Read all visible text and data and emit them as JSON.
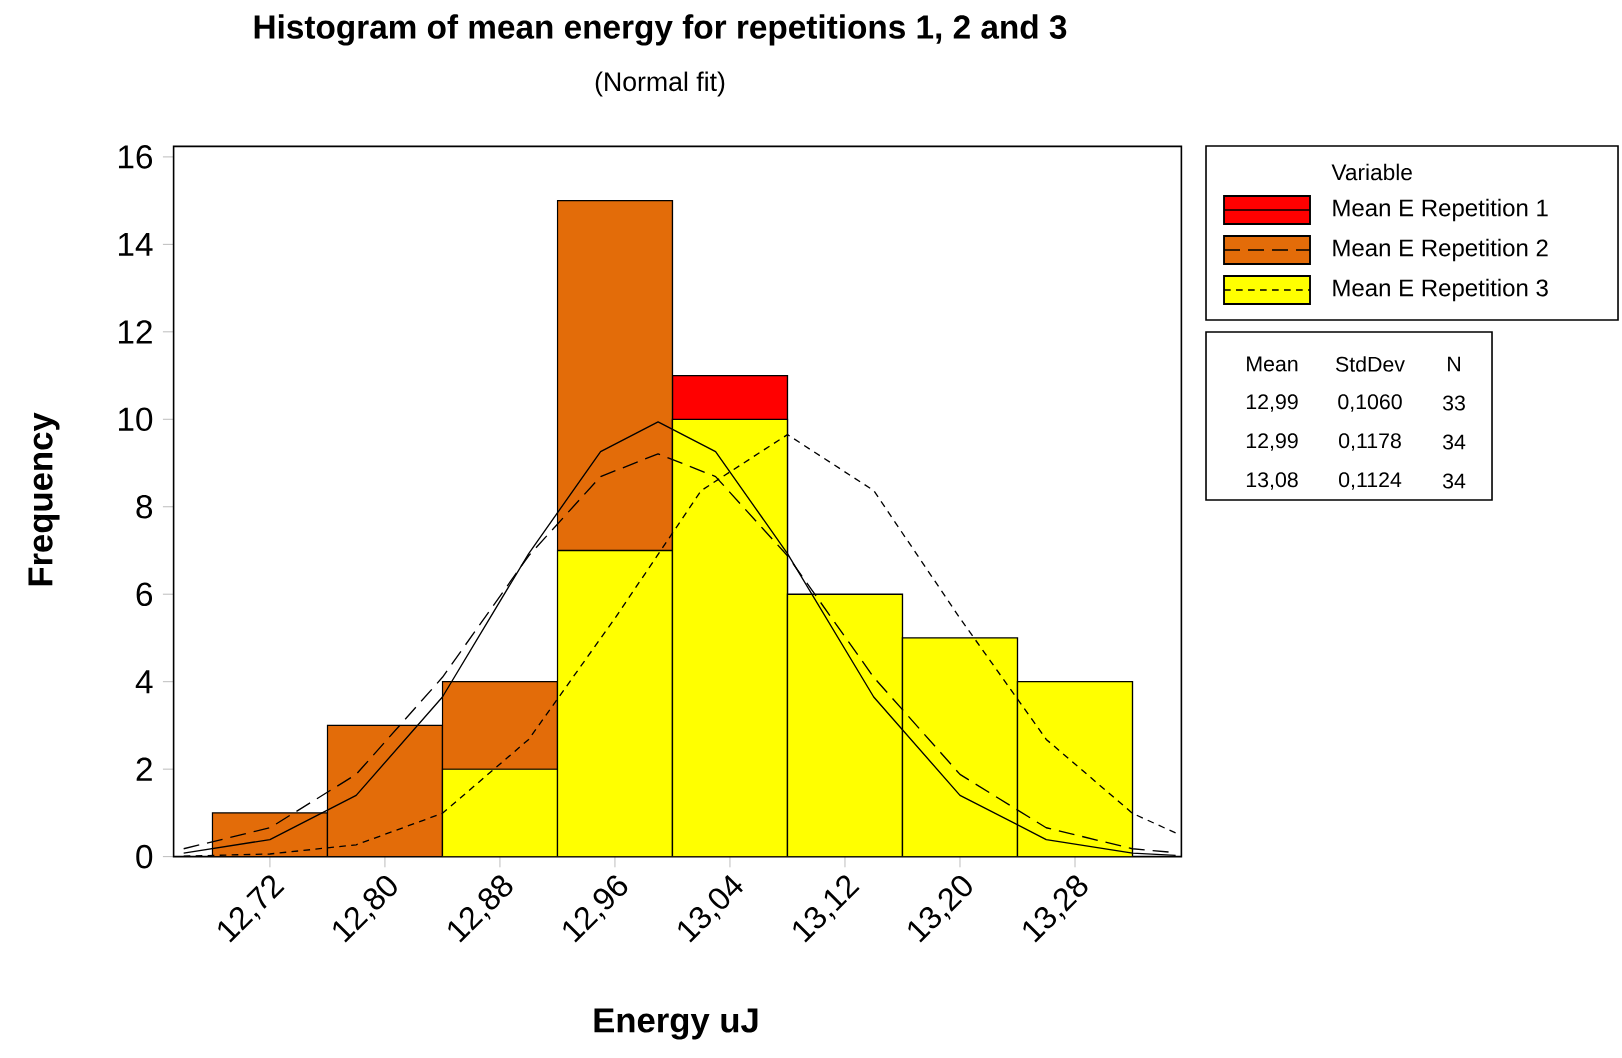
{
  "chart_data": {
    "type": "histogram",
    "title": "Histogram of mean energy for repetitions 1, 2 and 3",
    "subtitle": "(Normal fit)",
    "xlabel": "Energy uJ",
    "ylabel": "Frequency",
    "legend_title": "Variable",
    "legend": "right",
    "bins": [
      12.68,
      12.76,
      12.84,
      12.92,
      13.0,
      13.08,
      13.16,
      13.24,
      13.32
    ],
    "xlim": [
      12.653,
      13.354
    ],
    "ylim": [
      0,
      16.24
    ],
    "xticks": [
      {
        "value": 12.72,
        "label": "12,72"
      },
      {
        "value": 12.8,
        "label": "12,80"
      },
      {
        "value": 12.88,
        "label": "12,88"
      },
      {
        "value": 12.96,
        "label": "12,96"
      },
      {
        "value": 13.04,
        "label": "13,04"
      },
      {
        "value": 13.12,
        "label": "13,12"
      },
      {
        "value": 13.2,
        "label": "13,20"
      },
      {
        "value": 13.28,
        "label": "13,28"
      }
    ],
    "yticks": [
      0,
      2,
      4,
      6,
      8,
      10,
      12,
      14,
      16
    ],
    "series": [
      {
        "name": "Mean E Repetition 1",
        "color": "#ff0000",
        "values": [
          null,
          null,
          null,
          null,
          11,
          null,
          null,
          null
        ]
      },
      {
        "name": "Mean E Repetition 2",
        "color": "#e36c09",
        "values": [
          1,
          3,
          4,
          15,
          null,
          null,
          null,
          null
        ]
      },
      {
        "name": "Mean E Repetition 3",
        "color": "#ffff00",
        "values": [
          0,
          0,
          2,
          7,
          10,
          6,
          5,
          4
        ]
      },
      {
        "type": "line",
        "color": "#000000",
        "line_style": "solid",
        "x": [
          12.66,
          12.72,
          12.78,
          12.84,
          12.9,
          12.95,
          12.99,
          13.03,
          13.08,
          13.14,
          13.2,
          13.26,
          13.32,
          13.35
        ],
        "values": [
          0.08,
          0.39,
          1.4,
          3.65,
          6.93,
          9.26,
          9.94,
          9.26,
          6.93,
          3.65,
          1.4,
          0.39,
          0.08,
          0.03
        ]
      },
      {
        "type": "line",
        "color": "#000000",
        "line_style": "dashed",
        "x": [
          12.66,
          12.72,
          12.78,
          12.84,
          12.9,
          12.95,
          12.99,
          13.03,
          13.08,
          13.14,
          13.2,
          13.26,
          13.32,
          13.35
        ],
        "values": [
          0.18,
          0.66,
          1.88,
          4.1,
          6.88,
          8.69,
          9.21,
          8.69,
          6.88,
          4.1,
          1.88,
          0.66,
          0.18,
          0.09
        ]
      },
      {
        "type": "line",
        "color": "#000000",
        "line_style": "dotted",
        "x": [
          12.66,
          12.72,
          12.78,
          12.84,
          12.9,
          12.96,
          13.02,
          13.08,
          13.14,
          13.2,
          13.26,
          13.32,
          13.35
        ],
        "values": [
          0.01,
          0.06,
          0.27,
          0.99,
          2.68,
          5.45,
          8.37,
          9.65,
          8.37,
          5.45,
          2.68,
          0.99,
          0.54
        ]
      }
    ],
    "annotations": [
      "Mean",
      "StdDev",
      "N",
      "12,99",
      "0,1060",
      "33",
      "12,99",
      "0,1178",
      "34",
      "13,08",
      "0,1124",
      "34"
    ]
  }
}
